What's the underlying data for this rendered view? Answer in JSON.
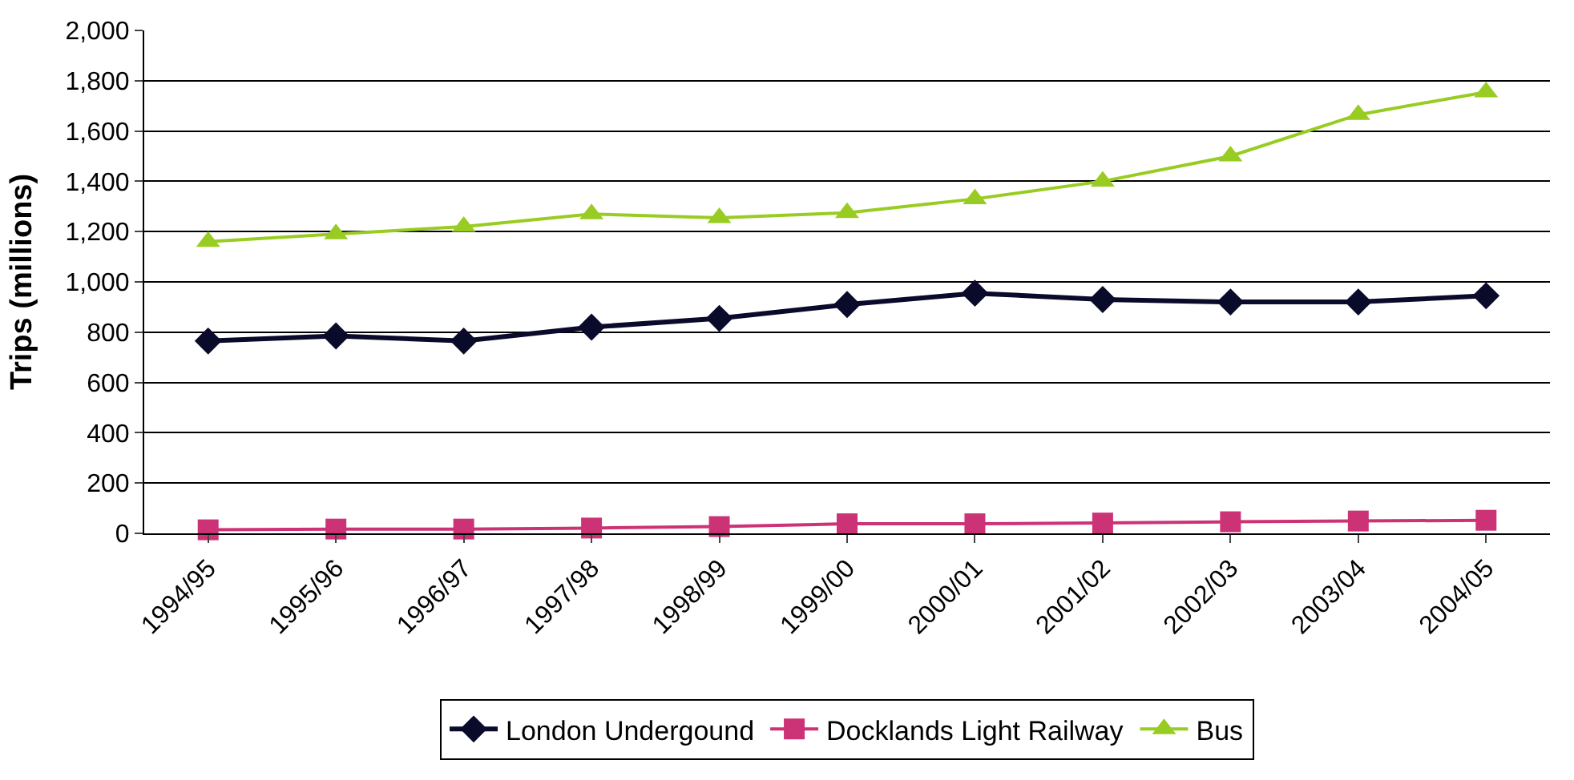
{
  "chart_data": {
    "type": "line",
    "ylabel": "Trips (millions)",
    "categories": [
      "1994/95",
      "1995/96",
      "1996/97",
      "1997/98",
      "1998/99",
      "1999/00",
      "2000/01",
      "2001/02",
      "2002/03",
      "2003/04",
      "2004/05"
    ],
    "series": [
      {
        "name": "London Undergound",
        "color": "#0a0a2a",
        "marker": "diamond",
        "values": [
          765,
          785,
          765,
          820,
          855,
          910,
          955,
          930,
          920,
          920,
          945
        ]
      },
      {
        "name": "Docklands Light Railway",
        "color": "#cc3377",
        "marker": "square",
        "values": [
          14,
          17,
          17,
          21,
          27,
          38,
          38,
          41,
          46,
          49,
          52
        ]
      },
      {
        "name": "Bus",
        "color": "#99cc22",
        "marker": "triangle",
        "values": [
          1160,
          1190,
          1220,
          1270,
          1255,
          1275,
          1330,
          1400,
          1500,
          1665,
          1755
        ]
      }
    ],
    "ylim": [
      0,
      2000
    ],
    "yticks": [
      {
        "value": 0,
        "label": "0"
      },
      {
        "value": 200,
        "label": "200"
      },
      {
        "value": 400,
        "label": "400"
      },
      {
        "value": 600,
        "label": "600"
      },
      {
        "value": 800,
        "label": "800"
      },
      {
        "value": 1000,
        "label": "1,000"
      },
      {
        "value": 1200,
        "label": "1,200"
      },
      {
        "value": 1400,
        "label": "1,400"
      },
      {
        "value": 1600,
        "label": "1,600"
      },
      {
        "value": 1800,
        "label": "1,800"
      },
      {
        "value": 2000,
        "label": "2,000"
      }
    ],
    "grid": "y",
    "legend": "bottom",
    "line_style": "solid"
  }
}
